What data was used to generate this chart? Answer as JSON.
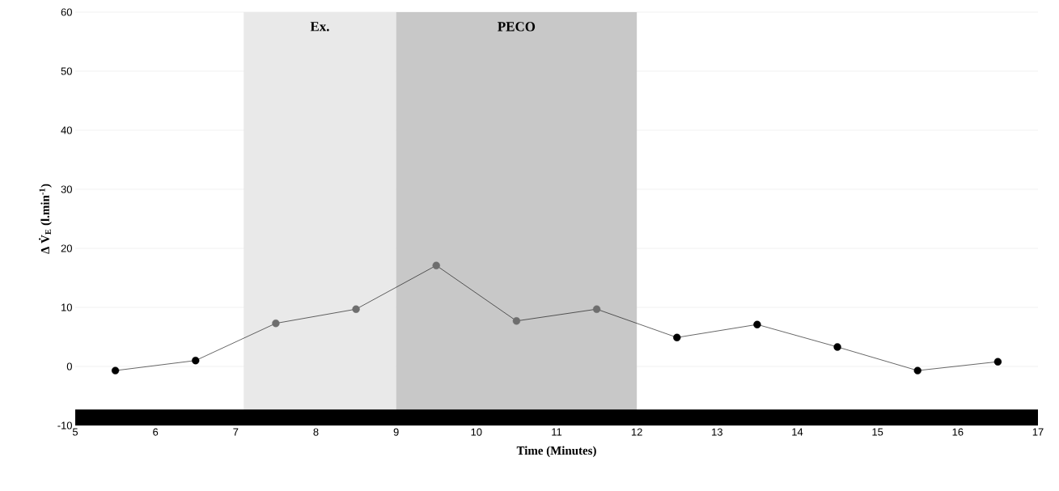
{
  "chart_data": {
    "type": "line",
    "xlabel": "Time (Minutes)",
    "ylabel": "Δ V̇$_{E}$ (l.min$^{-1}$)",
    "x": [
      5.5,
      6.5,
      7.5,
      8.5,
      9.5,
      10.5,
      11.5,
      12.5,
      13.5,
      14.5,
      15.5,
      16.5
    ],
    "series": [
      {
        "color": "#000000",
        "values": [
          -0.7,
          1.0,
          7.3,
          9.7,
          17.1,
          7.7,
          9.7,
          4.9,
          7.1,
          3.3,
          -0.7,
          0.8
        ],
        "colors": [
          "#000000",
          "#000000",
          "#6e6e6e",
          "#6e6e6e",
          "#6e6e6e",
          "#6e6e6e",
          "#6e6e6e",
          "#000000",
          "#000000",
          "#000000",
          "#000000",
          "#000000"
        ]
      }
    ],
    "bands": [
      {
        "axis": "y",
        "from": -10,
        "to": -7.3,
        "color": "#000000"
      },
      {
        "axis": "x",
        "from": 7.1,
        "to": 9,
        "label": "Ex.",
        "color": "#e9e9e9"
      },
      {
        "axis": "x",
        "from": 9,
        "to": 12,
        "label": "PECO",
        "color": "#c8c8c8"
      }
    ],
    "xlim": [
      5,
      17
    ],
    "ylim": [
      -10,
      60
    ],
    "xticks": [
      5,
      6,
      7,
      8,
      9,
      10,
      11,
      12,
      13,
      14,
      15,
      16,
      17
    ],
    "yticks": [
      -10,
      0,
      10,
      20,
      30,
      40,
      50,
      60
    ],
    "grid": "y",
    "marker": "circle",
    "line_style": "solid"
  }
}
